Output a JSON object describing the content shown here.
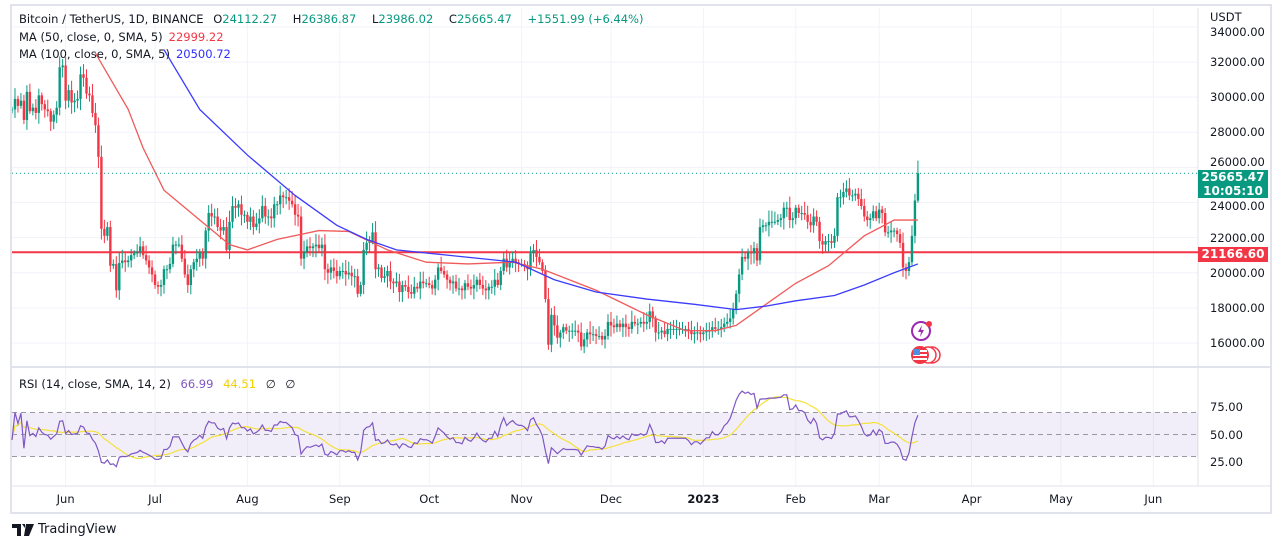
{
  "header": {
    "symbol": "Bitcoin / TetherUS, 1D, BINANCE",
    "open_label": "O",
    "open": "24112.27",
    "high_label": "H",
    "high": "26386.87",
    "low_label": "L",
    "low": "23986.02",
    "close_label": "C",
    "close": "25665.47",
    "change": "+1551.99 (+6.44%)"
  },
  "indicators": {
    "ma50": {
      "label": "MA (50, close, 0, SMA, 5)",
      "value": "22999.22",
      "color": "#f23645"
    },
    "ma100": {
      "label": "MA (100, close, 0, SMA, 5)",
      "value": "20500.72",
      "color": "#2f2fff"
    },
    "rsi": {
      "label": "RSI (14, close, SMA, 14, 2)",
      "value": "66.99",
      "ma_value": "44.51",
      "extra1": "∅",
      "extra2": "∅",
      "color": "#7e57c2",
      "ma_color": "#fdd835"
    }
  },
  "price_axis": {
    "currency": "USDT",
    "ticks": [
      "34000.00",
      "32000.00",
      "30000.00",
      "28000.00",
      "26000.00",
      "24000.00",
      "22000.00",
      "20000.00",
      "18000.00",
      "16000.00"
    ],
    "last_price": "25665.47",
    "countdown": "10:05:10",
    "hline_price": "21166.60"
  },
  "rsi_axis": {
    "ticks": [
      "75.00",
      "50.00",
      "25.00"
    ]
  },
  "time_axis": [
    "Jun",
    "Jul",
    "Aug",
    "Sep",
    "Oct",
    "Nov",
    "Dec",
    "2023",
    "Feb",
    "Mar",
    "Apr",
    "May",
    "Jun"
  ],
  "brand": "TradingView",
  "colors": {
    "up": "#089981",
    "down": "#f23645",
    "hline": "#f23645"
  },
  "chart_data": {
    "type": "candlestick",
    "ylim": [
      15000,
      34500
    ],
    "grid": true,
    "last_candle": {
      "date": "2023-03-14",
      "open": 24112.27,
      "high": 26386.87,
      "low": 23986.02,
      "close": 25665.47
    },
    "closes_by_month": [
      {
        "month": "2022-05",
        "first_day": 14,
        "closes": [
          29300,
          29900,
          29500,
          29800,
          28700,
          30300,
          29200,
          29400,
          29100,
          30100,
          29600,
          29300,
          29200,
          28600,
          29000,
          29400,
          31700,
          31800
        ]
      },
      {
        "month": "2022-06",
        "first_day": 1,
        "closes": [
          29800,
          30400,
          29700,
          29800,
          29900,
          31300,
          31100,
          30200,
          30100,
          29100,
          28400,
          26600,
          22500,
          22100,
          22600,
          20400,
          20500,
          19000,
          20550,
          20700,
          20600,
          20700,
          21000,
          21100,
          21200,
          21500,
          21000,
          20700,
          20300,
          19900
        ]
      },
      {
        "month": "2022-07",
        "first_day": 1,
        "closes": [
          19300,
          19200,
          19300,
          20200,
          20200,
          20500,
          21600,
          21600,
          21600,
          20800,
          19900,
          19300,
          20200,
          20600,
          20800,
          21200,
          20800,
          22400,
          23400,
          23200,
          23200,
          22600,
          22400,
          22600,
          21300,
          22900,
          23800,
          23700,
          23900,
          23300,
          23300
        ]
      },
      {
        "month": "2022-08",
        "first_day": 1,
        "closes": [
          22900,
          23200,
          22600,
          22800,
          23100,
          23800,
          23200,
          23200,
          23100,
          23900,
          23900,
          24400,
          24300,
          24300,
          24100,
          23900,
          23300,
          23200,
          20800,
          21200,
          21500,
          21400,
          21500,
          21600,
          21400,
          21600,
          20200,
          20000,
          20300,
          20100,
          19800
        ]
      },
      {
        "month": "2022-09",
        "first_day": 1,
        "closes": [
          20100,
          20100,
          19900,
          20000,
          19800,
          19800,
          18800,
          19300,
          21300,
          21700,
          21800,
          22300,
          20200,
          20300,
          19700,
          19800,
          20100,
          19500,
          19400,
          19500,
          18900,
          19300,
          19200,
          18900,
          18800,
          19200,
          19100,
          19500,
          19400,
          19400
        ]
      },
      {
        "month": "2022-10",
        "first_day": 1,
        "closes": [
          19300,
          19100,
          19600,
          20300,
          20100,
          19900,
          19600,
          19400,
          19500,
          19100,
          19100,
          19000,
          19400,
          19200,
          19100,
          19300,
          19600,
          19300,
          19100,
          19000,
          19200,
          19200,
          19600,
          19300,
          20100,
          20800,
          20300,
          20600,
          20800,
          20600,
          20500
        ]
      },
      {
        "month": "2022-11",
        "first_day": 1,
        "closes": [
          20500,
          20400,
          20200,
          21100,
          21300,
          20900,
          20600,
          20100,
          18500,
          15900,
          17600,
          17000,
          16300,
          16600,
          16900,
          16700,
          16700,
          16700,
          16700,
          16600,
          15800,
          16200,
          16600,
          16500,
          16500,
          16400,
          16400,
          16200,
          16400,
          17200
        ]
      },
      {
        "month": "2022-12",
        "first_day": 1,
        "closes": [
          17000,
          16900,
          17100,
          16900,
          17100,
          16900,
          16800,
          17200,
          17100,
          17100,
          17200,
          17100,
          17200,
          17800,
          17400,
          16600,
          16600,
          16700,
          16500,
          16800,
          16800,
          16800,
          16800,
          16800,
          16800,
          16800,
          16700,
          16500,
          16600,
          16600,
          16500
        ]
      },
      {
        "month": "2023-01",
        "first_day": 1,
        "closes": [
          16600,
          16700,
          16700,
          16900,
          16800,
          16800,
          16900,
          17100,
          17200,
          17400,
          17900,
          18800,
          19900,
          20900,
          20800,
          21200,
          21100,
          21400,
          20700,
          22600,
          22700,
          22700,
          22900,
          22900,
          22900,
          23000,
          23100,
          23700,
          23700,
          23000,
          23100
        ]
      },
      {
        "month": "2023-02",
        "first_day": 1,
        "closes": [
          23700,
          23400,
          23400,
          23300,
          22900,
          22700,
          23200,
          22900,
          21800,
          21600,
          21800,
          21800,
          21700,
          22100,
          24300,
          24300,
          24600,
          24800,
          24400,
          24400,
          24500,
          24200,
          23800,
          23200,
          23000,
          23100,
          23500,
          23100
        ]
      },
      {
        "month": "2023-03",
        "first_day": 1,
        "closes": [
          23600,
          23400,
          22300,
          22300,
          22400,
          22400,
          22200,
          21700,
          20300,
          20100,
          20600,
          22100,
          24112,
          25665
        ]
      }
    ],
    "ma50": [
      [
        "2022-06-11",
        32500
      ],
      [
        "2022-06-22",
        29300
      ],
      [
        "2022-06-27",
        27100
      ],
      [
        "2022-07-04",
        24700
      ],
      [
        "2022-07-16",
        23000
      ],
      [
        "2022-07-26",
        21600
      ],
      [
        "2022-08-01",
        21300
      ],
      [
        "2022-08-11",
        21900
      ],
      [
        "2022-08-25",
        22400
      ],
      [
        "2022-09-04",
        22350
      ],
      [
        "2022-09-17",
        21300
      ],
      [
        "2022-09-30",
        20600
      ],
      [
        "2022-10-14",
        20500
      ],
      [
        "2022-10-29",
        20600
      ],
      [
        "2022-11-08",
        20200
      ],
      [
        "2022-11-26",
        19000
      ],
      [
        "2022-12-13",
        17600
      ],
      [
        "2022-12-26",
        16700
      ],
      [
        "2023-01-05",
        16700
      ],
      [
        "2023-01-12",
        17000
      ],
      [
        "2023-01-22",
        18200
      ],
      [
        "2023-02-01",
        19400
      ],
      [
        "2023-02-12",
        20400
      ],
      [
        "2023-02-24",
        22100
      ],
      [
        "2023-03-06",
        23000
      ],
      [
        "2023-03-14",
        22999
      ]
    ],
    "ma100": [
      [
        "2022-07-04",
        32700
      ],
      [
        "2022-07-16",
        29300
      ],
      [
        "2022-08-01",
        26700
      ],
      [
        "2022-08-17",
        24400
      ],
      [
        "2022-08-31",
        22700
      ],
      [
        "2022-09-10",
        21900
      ],
      [
        "2022-09-20",
        21300
      ],
      [
        "2022-10-07",
        21000
      ],
      [
        "2022-10-30",
        20600
      ],
      [
        "2022-11-12",
        19600
      ],
      [
        "2022-11-26",
        18900
      ],
      [
        "2022-12-13",
        18500
      ],
      [
        "2022-12-29",
        18200
      ],
      [
        "2023-01-12",
        17900
      ],
      [
        "2023-01-22",
        18100
      ],
      [
        "2023-02-01",
        18400
      ],
      [
        "2023-02-14",
        18700
      ],
      [
        "2023-02-24",
        19300
      ],
      [
        "2023-03-06",
        20000
      ],
      [
        "2023-03-14",
        20500
      ]
    ]
  }
}
